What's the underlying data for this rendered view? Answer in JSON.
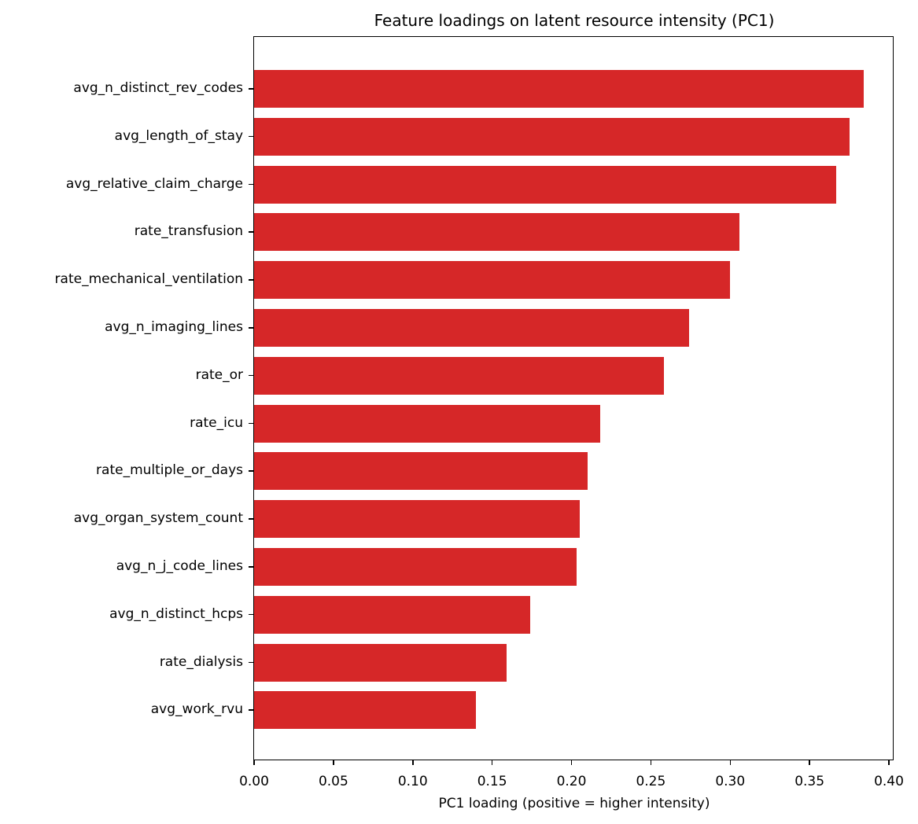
{
  "chart_data": {
    "type": "bar",
    "orientation": "horizontal",
    "title": "Feature loadings on latent resource intensity (PC1)",
    "xlabel": "PC1 loading (positive = higher intensity)",
    "ylabel": "",
    "xlim": [
      0.0,
      0.404
    ],
    "xticks": [
      "0.00",
      "0.05",
      "0.10",
      "0.15",
      "0.20",
      "0.25",
      "0.30",
      "0.35",
      "0.40"
    ],
    "grid": false,
    "legend": null,
    "bar_color": "#d62728",
    "categories": [
      "avg_n_distinct_rev_codes",
      "avg_length_of_stay",
      "avg_relative_claim_charge",
      "rate_transfusion",
      "rate_mechanical_ventilation",
      "avg_n_imaging_lines",
      "rate_or",
      "rate_icu",
      "rate_multiple_or_days",
      "avg_organ_system_count",
      "avg_n_j_code_lines",
      "avg_n_distinct_hcps",
      "rate_dialysis",
      "avg_work_rvu"
    ],
    "values": [
      0.384,
      0.375,
      0.367,
      0.306,
      0.3,
      0.274,
      0.258,
      0.218,
      0.21,
      0.205,
      0.203,
      0.174,
      0.159,
      0.14
    ]
  }
}
